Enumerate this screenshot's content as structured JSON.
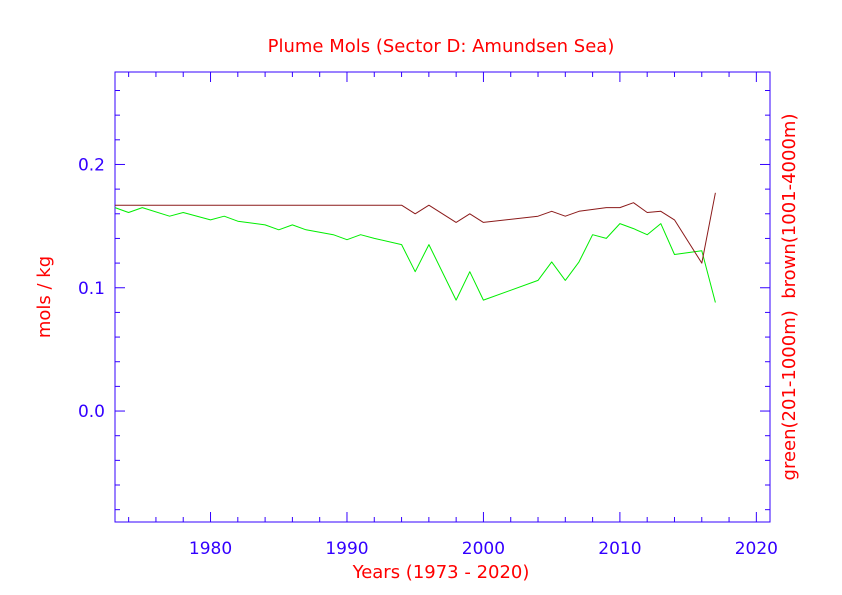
{
  "chart_data": {
    "type": "line",
    "title": "Plume Mols (Sector D: Amundsen Sea)",
    "xlabel": "Years (1973 - 2020)",
    "ylabel": "mols / kg",
    "ylabel_right": "green(201-1000m)  brown(1001-4000m)",
    "xlim": [
      1973,
      2021
    ],
    "ylim": [
      -0.09,
      0.275
    ],
    "x_ticks": [
      1980,
      1990,
      2000,
      2010,
      2020
    ],
    "x_tick_labels": [
      "1980",
      "1990",
      "2000",
      "2010",
      "2020"
    ],
    "y_ticks": [
      0.0,
      0.1,
      0.2
    ],
    "y_tick_labels": [
      "0.0",
      "0.1",
      "0.2"
    ],
    "x_minor_step": 2,
    "y_minor_step": 0.02,
    "grid": false,
    "colors": {
      "text": "#ff0000",
      "axes": "#3300ff",
      "green": "#00ee00",
      "brown": "#8b1a1a"
    },
    "series": [
      {
        "color": "green",
        "x": [
          1973,
          1974,
          1975,
          1977,
          1978,
          1980,
          1981,
          1982,
          1984,
          1985,
          1986,
          1987,
          1989,
          1990,
          1991,
          1992,
          1994,
          1995,
          1996,
          1998,
          1999,
          2000,
          2004,
          2005,
          2006,
          2007,
          2008,
          2009,
          2010,
          2011,
          2012,
          2013,
          2014,
          2016,
          2017
        ],
        "y": [
          0.165,
          0.161,
          0.165,
          0.158,
          0.161,
          0.155,
          0.158,
          0.154,
          0.151,
          0.147,
          0.151,
          0.147,
          0.143,
          0.139,
          0.143,
          0.14,
          0.135,
          0.113,
          0.135,
          0.09,
          0.113,
          0.09,
          0.106,
          0.121,
          0.106,
          0.121,
          0.143,
          0.14,
          0.152,
          0.148,
          0.143,
          0.152,
          0.127,
          0.13,
          0.088
        ]
      },
      {
        "color": "brown",
        "x": [
          1973,
          1994,
          1995,
          1996,
          1998,
          1999,
          2000,
          2004,
          2005,
          2006,
          2007,
          2009,
          2010,
          2011,
          2012,
          2013,
          2014,
          2016,
          2017
        ],
        "y": [
          0.167,
          0.167,
          0.16,
          0.167,
          0.153,
          0.16,
          0.153,
          0.158,
          0.162,
          0.158,
          0.162,
          0.165,
          0.165,
          0.169,
          0.161,
          0.162,
          0.155,
          0.12,
          0.177
        ]
      }
    ]
  }
}
